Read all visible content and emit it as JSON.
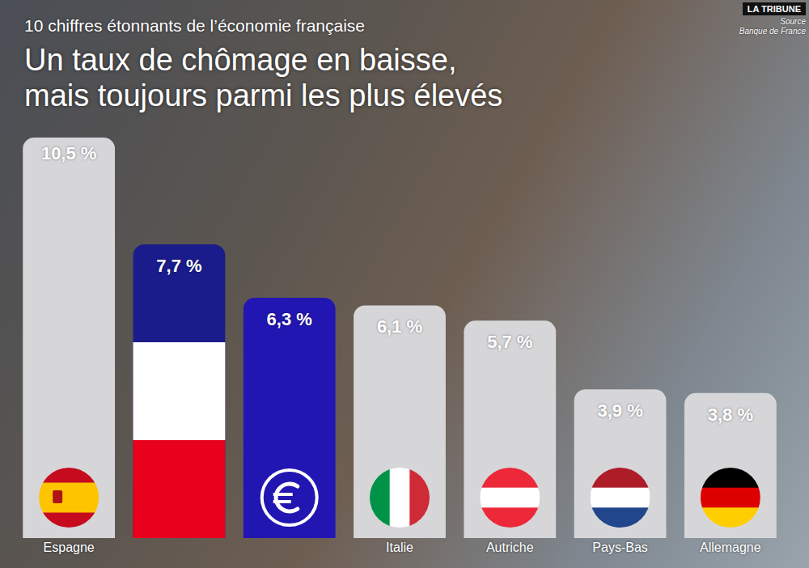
{
  "chart_data": {
    "type": "bar",
    "supertitle": "10 chiffres étonnants de l’économie française",
    "title": "Un taux de chômage en baisse, mais toujours parmi les plus élevés",
    "logo": "LA TRIBUNE",
    "source_label": "Source",
    "source": "Banque de France",
    "categories": [
      "Espagne",
      null,
      null,
      "Italie",
      "Autriche",
      "Pays-Bas",
      "Allemagne"
    ],
    "values": [
      10.5,
      7.7,
      6.3,
      6.1,
      5.7,
      3.9,
      3.8
    ],
    "value_labels": [
      "10,5 %",
      "7,7 %",
      "6,3 %",
      "6,1 %",
      "5,7 %",
      "3,9 %",
      "3,8 %"
    ],
    "colors": [
      "#d6d6d9",
      "#1b1c8c",
      "#2216b2",
      "#d6d6d9",
      "#d6d6d9",
      "#d6d6d9",
      "#d6d6d9"
    ],
    "ylim": [
      0,
      10.5
    ],
    "data_labels": true,
    "tick_labels": "x",
    "grid": false
  }
}
